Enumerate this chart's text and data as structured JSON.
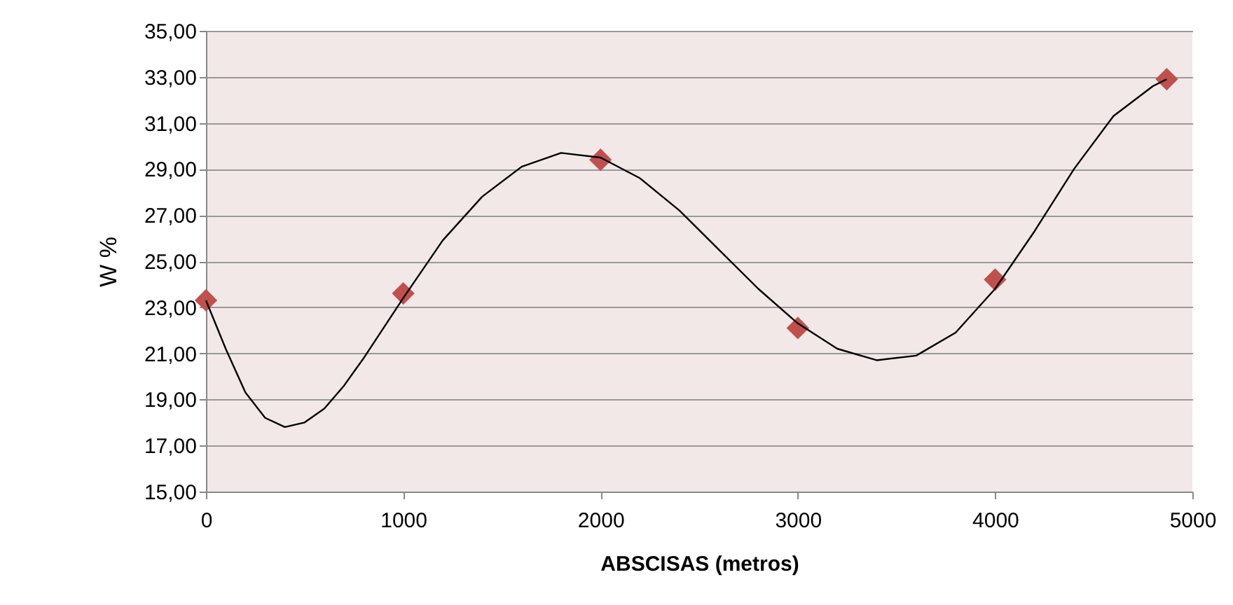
{
  "chart_data": {
    "type": "scatter",
    "xlabel": "ABSCISAS (metros)",
    "ylabel": "W %",
    "xlim": [
      0,
      5000
    ],
    "xticks": [
      0,
      1000,
      2000,
      3000,
      4000,
      5000
    ],
    "ylim": [
      15,
      35
    ],
    "yticks": [
      {
        "value": 15,
        "label": "15,00"
      },
      {
        "value": 17,
        "label": "17,00"
      },
      {
        "value": 19,
        "label": "19,00"
      },
      {
        "value": 21,
        "label": "21,00"
      },
      {
        "value": 23,
        "label": "23,00"
      },
      {
        "value": 25,
        "label": "25,00"
      },
      {
        "value": 27,
        "label": "27,00"
      },
      {
        "value": 29,
        "label": "29,00"
      },
      {
        "value": 31,
        "label": "31,00"
      },
      {
        "value": 33,
        "label": "33,00"
      },
      {
        "value": 35,
        "label": "35,00"
      }
    ],
    "grid": "y",
    "series": [
      {
        "color": "#c0504d",
        "marker": "diamond",
        "x": [
          0,
          1000,
          2000,
          3000,
          4000,
          4870
        ],
        "values": [
          23.3,
          23.6,
          29.4,
          22.1,
          24.2,
          32.9
        ]
      },
      {
        "type": "line",
        "color": "#000000",
        "line_style": "solid",
        "x": [
          0,
          100,
          200,
          300,
          400,
          500,
          600,
          700,
          800,
          1000,
          1200,
          1400,
          1600,
          1800,
          2000,
          2200,
          2400,
          2600,
          2800,
          3000,
          3200,
          3400,
          3600,
          3800,
          4000,
          4200,
          4400,
          4600,
          4800,
          4870
        ],
        "values": [
          23.3,
          21.2,
          19.3,
          18.2,
          17.8,
          18.0,
          18.6,
          19.6,
          20.8,
          23.4,
          25.9,
          27.8,
          29.1,
          29.7,
          29.5,
          28.6,
          27.2,
          25.5,
          23.8,
          22.3,
          21.2,
          20.7,
          20.9,
          21.9,
          23.8,
          26.3,
          29.0,
          31.3,
          32.6,
          32.9
        ]
      }
    ]
  }
}
